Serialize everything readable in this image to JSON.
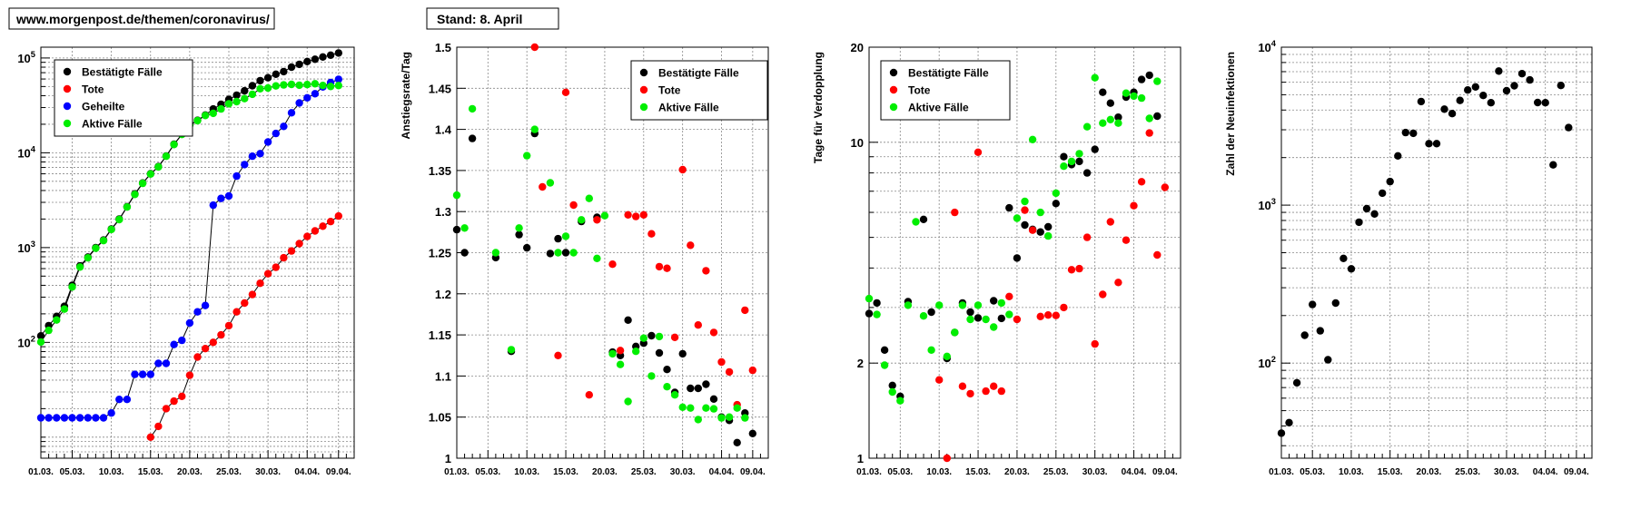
{
  "header": {
    "url_label": "www.morgenpost.de/themen/coronavirus/",
    "stand_label": "Stand: 8. April"
  },
  "colors": {
    "confirmed": "#000000",
    "deaths": "#ff0000",
    "recovered": "#0000ff",
    "active": "#00ee00",
    "grid": "#888888",
    "frame": "#000000"
  },
  "chart_data": [
    {
      "type": "scatter",
      "title": "",
      "xlabel": "",
      "ylabel": "",
      "yscale": "log",
      "xlim": [
        0,
        40
      ],
      "ylim": [
        6,
        130000
      ],
      "ytick_values": [
        100,
        1000,
        10000,
        100000
      ],
      "ytick_labels": [
        "10²",
        "10³",
        "10⁴",
        "10⁵"
      ],
      "x_tick_values": [
        0,
        4,
        9,
        14,
        19,
        24,
        29,
        34,
        38
      ],
      "x_tick_labels": [
        "01.03.",
        "05.03.",
        "10.03.",
        "15.03.",
        "20.03.",
        "25.03.",
        "30.03.",
        "04.04.",
        "09.04."
      ],
      "legend_position": "top-left",
      "series": [
        {
          "name": "Bestätigte Fälle",
          "color": "#000000",
          "connect_line": true,
          "x": [
            0,
            1,
            2,
            3,
            4,
            5,
            6,
            7,
            8,
            9,
            10,
            11,
            12,
            13,
            14,
            15,
            16,
            17,
            18,
            19,
            20,
            21,
            22,
            23,
            24,
            25,
            26,
            27,
            28,
            29,
            30,
            31,
            32,
            33,
            34,
            35,
            36,
            37,
            38
          ],
          "y": [
            117,
            150,
            188,
            240,
            400,
            640,
            795,
            1000,
            1200,
            1570,
            2000,
            2700,
            3680,
            4800,
            6010,
            7150,
            9250,
            12300,
            15700,
            19800,
            22000,
            25000,
            29000,
            32400,
            36500,
            40500,
            45000,
            50900,
            57600,
            61800,
            67400,
            71800,
            80000,
            85800,
            91700,
            97000,
            102500,
            107000,
            113000
          ]
        },
        {
          "name": "Tote",
          "color": "#ff0000",
          "connect_line": true,
          "x": [
            14,
            15,
            16,
            17,
            18,
            19,
            20,
            21,
            22,
            23,
            24,
            25,
            26,
            27,
            28,
            29,
            30,
            31,
            32,
            33,
            34,
            35,
            36,
            37,
            38
          ],
          "y": [
            10,
            13,
            20,
            24,
            27,
            45,
            70,
            86,
            100,
            120,
            150,
            210,
            260,
            320,
            420,
            530,
            620,
            780,
            920,
            1100,
            1310,
            1500,
            1680,
            1880,
            2150
          ]
        },
        {
          "name": "Geheilte",
          "color": "#0000ff",
          "connect_line": true,
          "x": [
            0,
            1,
            2,
            3,
            4,
            5,
            6,
            7,
            8,
            9,
            10,
            11,
            12,
            13,
            14,
            15,
            16,
            17,
            18,
            19,
            20,
            21,
            22,
            23,
            24,
            25,
            26,
            27,
            28,
            29,
            30,
            31,
            32,
            33,
            34,
            35,
            36,
            37,
            38
          ],
          "y": [
            16,
            16,
            16,
            16,
            16,
            16,
            16,
            16,
            16,
            18,
            25,
            25,
            46,
            46,
            46,
            60,
            60,
            95,
            105,
            160,
            210,
            245,
            2800,
            3300,
            3500,
            5670,
            7500,
            9200,
            9800,
            13000,
            16000,
            19000,
            26400,
            33500,
            38000,
            42000,
            49500,
            55000,
            59600
          ]
        },
        {
          "name": "Aktive Fälle",
          "color": "#00ee00",
          "connect_line": true,
          "x": [
            0,
            1,
            2,
            3,
            4,
            5,
            6,
            7,
            8,
            9,
            10,
            11,
            12,
            13,
            14,
            15,
            16,
            17,
            18,
            19,
            20,
            21,
            22,
            23,
            24,
            25,
            26,
            27,
            28,
            29,
            30,
            31,
            32,
            33,
            34,
            35,
            36,
            37,
            38
          ],
          "y": [
            101,
            134,
            172,
            224,
            384,
            624,
            779,
            984,
            1184,
            1552,
            1975,
            2675,
            3634,
            4754,
            5964,
            7090,
            9190,
            12205,
            15595,
            19640,
            21790,
            24755,
            26100,
            29000,
            32850,
            34620,
            37240,
            41380,
            47380,
            48270,
            50780,
            52000,
            52680,
            51600,
            52400,
            53500,
            51320,
            50100,
            51200
          ]
        }
      ]
    },
    {
      "type": "scatter",
      "title": "",
      "xlabel": "",
      "ylabel": "Anstiegsrate/Tag",
      "yscale": "linear",
      "xlim": [
        0,
        40
      ],
      "ylim": [
        1,
        1.5
      ],
      "ytick_values": [
        1,
        1.05,
        1.1,
        1.15,
        1.2,
        1.25,
        1.3,
        1.35,
        1.4,
        1.45,
        1.5
      ],
      "ytick_labels": [
        "1",
        "1.05",
        "1.1",
        "1.15",
        "1.2",
        "1.25",
        "1.3",
        "1.35",
        "1.4",
        "1.45",
        "1.5"
      ],
      "x_tick_values": [
        0,
        4,
        9,
        14,
        19,
        24,
        29,
        34,
        38
      ],
      "x_tick_labels": [
        "01.03.",
        "05.03.",
        "10.03.",
        "15.03.",
        "20.03.",
        "25.03.",
        "30.03.",
        "04.04.",
        "09.04."
      ],
      "legend_position": "top-right",
      "series": [
        {
          "name": "Bestätigte Fälle",
          "color": "#000000",
          "x": [
            0,
            1,
            2,
            5,
            7,
            8,
            9,
            10,
            12,
            13,
            14,
            16,
            18,
            20,
            21,
            22,
            23,
            24,
            25,
            26,
            27,
            28,
            29,
            30,
            31,
            32,
            33,
            34,
            35,
            36,
            37,
            38
          ],
          "y": [
            1.278,
            1.25,
            1.389,
            1.244,
            1.13,
            1.272,
            1.256,
            1.395,
            1.249,
            1.267,
            1.25,
            1.288,
            1.293,
            1.129,
            1.125,
            1.168,
            1.136,
            1.14,
            1.149,
            1.128,
            1.108,
            1.08,
            1.127,
            1.085,
            1.085,
            1.09,
            1.072,
            1.05,
            1.046,
            1.019,
            1.055,
            1.03
          ]
        },
        {
          "name": "Tote",
          "color": "#ff0000",
          "x": [
            10,
            11,
            13,
            14,
            15,
            17,
            18,
            20,
            21,
            22,
            23,
            24,
            25,
            26,
            27,
            28,
            29,
            30,
            31,
            32,
            33,
            34,
            35,
            36,
            37,
            38
          ],
          "y": [
            1.5,
            1.33,
            1.125,
            1.445,
            1.308,
            1.077,
            1.29,
            1.236,
            1.131,
            1.296,
            1.294,
            1.296,
            1.273,
            1.233,
            1.231,
            1.147,
            1.351,
            1.259,
            1.162,
            1.228,
            1.153,
            1.117,
            1.105,
            1.065,
            1.18,
            1.107
          ]
        },
        {
          "name": "Aktive Fälle",
          "color": "#00ee00",
          "x": [
            0,
            1,
            2,
            5,
            7,
            8,
            9,
            10,
            12,
            13,
            14,
            15,
            16,
            17,
            18,
            19,
            20,
            21,
            22,
            23,
            24,
            25,
            26,
            27,
            28,
            29,
            30,
            31,
            32,
            33,
            34,
            35,
            36,
            37
          ],
          "y": [
            1.32,
            1.28,
            1.425,
            1.25,
            1.132,
            1.28,
            1.368,
            1.4,
            1.335,
            1.25,
            1.27,
            1.25,
            1.29,
            1.316,
            1.243,
            1.295,
            1.127,
            1.114,
            1.069,
            1.13,
            1.146,
            1.1,
            1.148,
            1.087,
            1.077,
            1.062,
            1.061,
            1.047,
            1.061,
            1.06,
            1.049,
            1.05,
            1.061,
            1.049
          ]
        }
      ]
    },
    {
      "type": "scatter",
      "title": "",
      "xlabel": "",
      "ylabel": "Tage für Verdopplung",
      "yscale": "log",
      "xlim": [
        0,
        40
      ],
      "ylim": [
        1,
        20
      ],
      "ytick_values": [
        1,
        2,
        10,
        20
      ],
      "ytick_labels": [
        "1",
        "2",
        "10",
        "20"
      ],
      "x_tick_values": [
        0,
        4,
        9,
        14,
        19,
        24,
        29,
        34,
        38
      ],
      "x_tick_labels": [
        "01.03.",
        "05.03.",
        "10.03.",
        "15.03.",
        "20.03.",
        "25.03.",
        "30.03.",
        "04.04.",
        "09.04."
      ],
      "legend_position": "top-left",
      "series": [
        {
          "name": "Bestätigte Fälle",
          "color": "#000000",
          "x": [
            0,
            1,
            2,
            3,
            4,
            5,
            7,
            8,
            10,
            11,
            12,
            13,
            14,
            16,
            17,
            18,
            19,
            20,
            21,
            22,
            23,
            24,
            25,
            26,
            27,
            28,
            29,
            30,
            31,
            32,
            33,
            34,
            35,
            36,
            37
          ],
          "y": [
            2.87,
            3.1,
            2.2,
            1.7,
            1.57,
            3.13,
            5.7,
            2.9,
            2.07,
            2.5,
            3.1,
            2.9,
            2.78,
            3.15,
            2.77,
            6.2,
            4.3,
            5.47,
            5.3,
            5.2,
            5.4,
            6.4,
            9.0,
            8.5,
            8.7,
            8.0,
            9.5,
            14.4,
            13.3,
            12.0,
            13.9,
            14.4,
            15.8,
            16.3,
            12.1
          ]
        },
        {
          "name": "Tote",
          "color": "#ff0000",
          "x": [
            9,
            10,
            11,
            12,
            13,
            14,
            15,
            16,
            17,
            18,
            19,
            20,
            21,
            22,
            23,
            24,
            25,
            26,
            27,
            28,
            29,
            30,
            31,
            32,
            33,
            34,
            35,
            36,
            37,
            38
          ],
          "y": [
            1.77,
            1.0,
            6.0,
            1.69,
            1.6,
            9.3,
            1.63,
            1.69,
            1.63,
            3.25,
            2.75,
            6.1,
            5.27,
            2.81,
            2.84,
            2.83,
            3.0,
            3.95,
            3.98,
            5.0,
            2.3,
            3.3,
            5.6,
            3.6,
            4.9,
            6.3,
            7.5,
            10.7,
            4.4,
            7.2
          ]
        },
        {
          "name": "Aktive Fälle",
          "color": "#00ee00",
          "x": [
            0,
            1,
            2,
            3,
            4,
            5,
            6,
            7,
            8,
            9,
            10,
            11,
            12,
            13,
            14,
            15,
            16,
            17,
            18,
            19,
            20,
            21,
            22,
            23,
            24,
            25,
            26,
            27,
            28,
            29,
            30,
            31,
            32,
            33,
            34,
            35,
            36,
            37
          ],
          "y": [
            3.2,
            2.85,
            1.97,
            1.62,
            1.52,
            3.05,
            5.6,
            2.82,
            2.2,
            3.05,
            2.1,
            2.5,
            3.05,
            2.75,
            3.05,
            2.75,
            2.6,
            3.1,
            2.85,
            5.75,
            6.5,
            10.2,
            6.0,
            5.05,
            6.9,
            8.4,
            8.7,
            9.2,
            11.2,
            16.0,
            11.5,
            11.8,
            11.5,
            14.3,
            14.0,
            13.8,
            11.9,
            15.6
          ]
        }
      ]
    },
    {
      "type": "scatter",
      "title": "",
      "xlabel": "",
      "ylabel": "Zahl der Neuinfektionen",
      "yscale": "log",
      "xlim": [
        0,
        40
      ],
      "ylim": [
        25,
        10000
      ],
      "ytick_values": [
        100,
        1000,
        10000
      ],
      "ytick_labels": [
        "10²",
        "10³",
        "10⁴"
      ],
      "x_tick_values": [
        0,
        4,
        9,
        14,
        19,
        24,
        29,
        34,
        38
      ],
      "x_tick_labels": [
        "01.03.",
        "05.03.",
        "10.03.",
        "15.03.",
        "20.03.",
        "25.03.",
        "30.03.",
        "04.04.",
        "09.04."
      ],
      "legend_position": "none",
      "series": [
        {
          "name": "Zahl der Neuinfektionen",
          "color": "#000000",
          "x": [
            0,
            1,
            2,
            3,
            4,
            5,
            6,
            7,
            8,
            9,
            10,
            11,
            12,
            13,
            14,
            15,
            16,
            17,
            18,
            19,
            20,
            21,
            22,
            23,
            24,
            25,
            26,
            27,
            28,
            29,
            30,
            31,
            32,
            33,
            34,
            35,
            36,
            37
          ],
          "y": [
            36,
            42,
            75,
            150,
            235,
            160,
            105,
            240,
            460,
            395,
            780,
            950,
            880,
            1190,
            1410,
            2050,
            2880,
            2850,
            4530,
            2450,
            2450,
            4050,
            3800,
            4600,
            5360,
            5600,
            4950,
            4450,
            7060,
            5300,
            5700,
            6800,
            6200,
            4460,
            4450,
            1800,
            5720,
            3100
          ]
        }
      ]
    }
  ]
}
